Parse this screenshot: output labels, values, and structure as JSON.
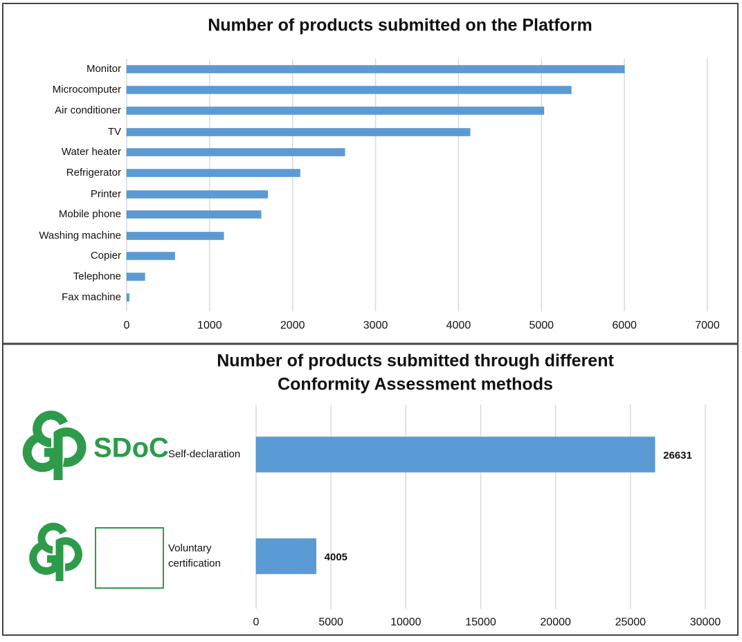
{
  "chart_data": [
    {
      "type": "bar",
      "orientation": "horizontal",
      "title": "Number of products submitted on the Platform",
      "categories": [
        "Monitor",
        "Microcomputer",
        "Air conditioner",
        "TV",
        "Water heater",
        "Refrigerator",
        "Printer",
        "Mobile phone",
        "Washing machine",
        "Copier",
        "Telephone",
        "Fax machine"
      ],
      "values": [
        6000,
        5360,
        5030,
        4140,
        2630,
        2090,
        1700,
        1620,
        1170,
        580,
        220,
        30
      ],
      "color": "#5b9bd5",
      "xlim": [
        0,
        7000
      ],
      "xticks": [
        0,
        1000,
        2000,
        3000,
        4000,
        5000,
        6000,
        7000
      ],
      "grid": true
    },
    {
      "type": "bar",
      "orientation": "horizontal",
      "title": [
        "Number of products submitted through different",
        "Conformity Assessment methods"
      ],
      "categories": [
        "Self-declaration",
        "Voluntary certification"
      ],
      "values": [
        26631,
        4005
      ],
      "color": "#5b9bd5",
      "xlim": [
        0,
        30000
      ],
      "xticks": [
        0,
        5000,
        10000,
        15000,
        20000,
        25000,
        30000
      ],
      "grid": true,
      "annotations": [
        "SDoC"
      ]
    }
  ]
}
